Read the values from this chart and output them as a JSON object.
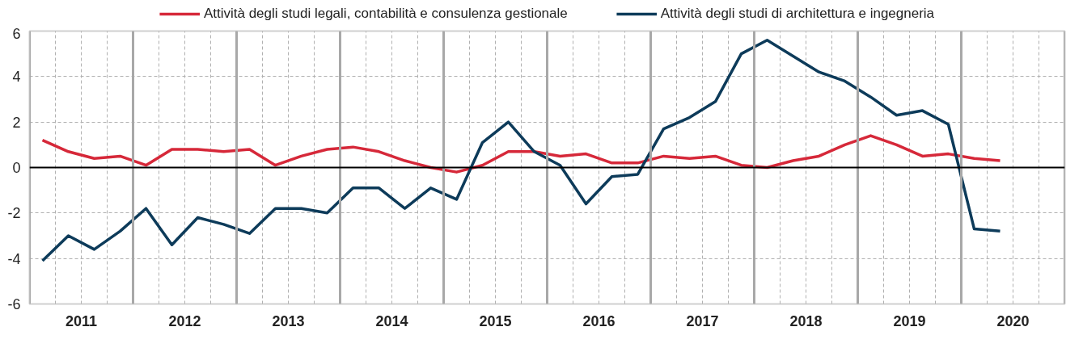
{
  "chart_data": {
    "type": "line",
    "x": [
      2011.125,
      2011.375,
      2011.625,
      2011.875,
      2012.125,
      2012.375,
      2012.625,
      2012.875,
      2013.125,
      2013.375,
      2013.625,
      2013.875,
      2014.125,
      2014.375,
      2014.625,
      2014.875,
      2015.125,
      2015.375,
      2015.625,
      2015.875,
      2016.125,
      2016.375,
      2016.625,
      2016.875,
      2017.125,
      2017.375,
      2017.625,
      2017.875,
      2018.125,
      2018.375,
      2018.625,
      2018.875,
      2019.125,
      2019.375,
      2019.625,
      2019.875,
      2020.125,
      2020.375
    ],
    "series": [
      {
        "name": "Attività degli studi legali, contabilità e consulenza gestionale",
        "color": "#d62839",
        "values": [
          1.2,
          0.7,
          0.4,
          0.5,
          0.1,
          0.8,
          0.8,
          0.7,
          0.8,
          0.1,
          0.5,
          0.8,
          0.9,
          0.7,
          0.3,
          0.0,
          -0.2,
          0.1,
          0.7,
          0.7,
          0.5,
          0.6,
          0.2,
          0.2,
          0.5,
          0.4,
          0.5,
          0.1,
          0.0,
          0.3,
          0.5,
          1.0,
          1.4,
          1.0,
          0.5,
          0.6,
          0.4,
          0.3
        ]
      },
      {
        "name": "Attività degli studi di architettura e ingegneria",
        "color": "#0d3b5a",
        "values": [
          -4.1,
          -3.0,
          -3.6,
          -2.8,
          -1.8,
          -3.4,
          -2.2,
          -2.5,
          -2.9,
          -1.8,
          -1.8,
          -2.0,
          -0.9,
          -0.9,
          -1.8,
          -0.9,
          -1.4,
          1.1,
          2.0,
          0.7,
          0.1,
          -1.6,
          -0.4,
          -0.3,
          1.7,
          2.2,
          2.9,
          5.0,
          5.6,
          4.9,
          4.2,
          3.8,
          3.1,
          2.3,
          2.5,
          1.9,
          -2.7,
          -2.8
        ]
      }
    ],
    "xlim": [
      2011,
      2021
    ],
    "xticks": [
      {
        "value": 2011,
        "label": null
      },
      {
        "value": 2011.25,
        "label": null
      },
      {
        "value": 2011.5,
        "label": "2011"
      },
      {
        "value": 2011.75,
        "label": null
      },
      {
        "value": 2012,
        "label": null
      },
      {
        "value": 2012.25,
        "label": null
      },
      {
        "value": 2012.5,
        "label": "2012"
      },
      {
        "value": 2012.75,
        "label": null
      },
      {
        "value": 2013,
        "label": null
      },
      {
        "value": 2013.25,
        "label": null
      },
      {
        "value": 2013.5,
        "label": "2013"
      },
      {
        "value": 2013.75,
        "label": null
      },
      {
        "value": 2014,
        "label": null
      },
      {
        "value": 2014.25,
        "label": null
      },
      {
        "value": 2014.5,
        "label": "2014"
      },
      {
        "value": 2014.75,
        "label": null
      },
      {
        "value": 2015,
        "label": null
      },
      {
        "value": 2015.25,
        "label": null
      },
      {
        "value": 2015.5,
        "label": "2015"
      },
      {
        "value": 2015.75,
        "label": null
      },
      {
        "value": 2016,
        "label": null
      },
      {
        "value": 2016.25,
        "label": null
      },
      {
        "value": 2016.5,
        "label": "2016"
      },
      {
        "value": 2016.75,
        "label": null
      },
      {
        "value": 2017,
        "label": null
      },
      {
        "value": 2017.25,
        "label": null
      },
      {
        "value": 2017.5,
        "label": "2017"
      },
      {
        "value": 2017.75,
        "label": null
      },
      {
        "value": 2018,
        "label": null
      },
      {
        "value": 2018.25,
        "label": null
      },
      {
        "value": 2018.5,
        "label": "2018"
      },
      {
        "value": 2018.75,
        "label": null
      },
      {
        "value": 2019,
        "label": null
      },
      {
        "value": 2019.25,
        "label": null
      },
      {
        "value": 2019.5,
        "label": "2019"
      },
      {
        "value": 2019.75,
        "label": null
      },
      {
        "value": 2020,
        "label": null
      },
      {
        "value": 2020.25,
        "label": null
      },
      {
        "value": 2020.5,
        "label": "2020"
      },
      {
        "value": 2020.75,
        "label": null
      },
      {
        "value": 2021,
        "label": null
      }
    ],
    "ylim": [
      -6,
      6
    ],
    "yticks": [
      -6,
      -4,
      -2,
      0,
      2,
      4,
      6
    ],
    "ref_lines": [
      {
        "axis": "y",
        "value": 0,
        "color": "#000000"
      }
    ],
    "grid": true,
    "legend": "top",
    "line_style": "solid",
    "marker": "none"
  }
}
